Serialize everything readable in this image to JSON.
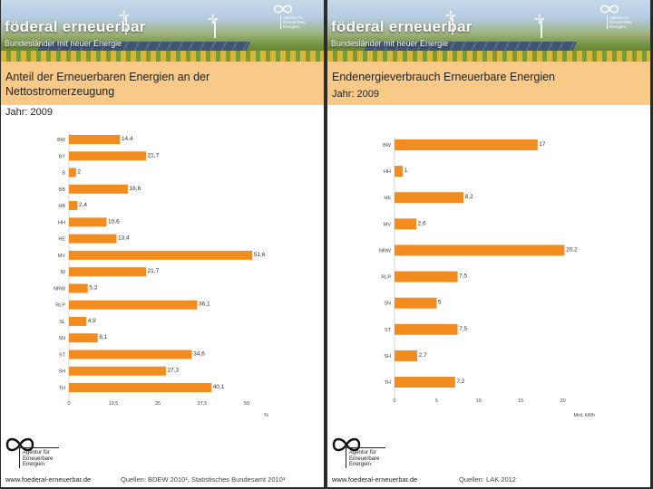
{
  "left": {
    "brand": "föderal erneuerbar",
    "tagline": "Bundesländer mit neuer Energie",
    "agency_text": [
      "Agentur für",
      "Erneuerbare",
      "Energien"
    ],
    "title_line1": "Anteil der Erneuerbaren Energien  an der",
    "title_line2": "Nettostromerzeugung",
    "year": "Jahr: 2009",
    "url": "www.foederal-erneuerbar.de",
    "source": "Quellen:  BDEW 2010¹, Statistisches Bundesamt 2010³"
  },
  "right": {
    "brand": "föderal erneuerbar",
    "tagline": "Bundesländer mit neuer Energie",
    "agency_text": [
      "Agentur für",
      "Erneuerbare",
      "Energien"
    ],
    "title": "Endenergieverbrauch Erneuerbare Energien",
    "year": "Jahr: 2009",
    "url": "www.foederal-erneuerbar.de",
    "source": "Quellen:  LAK 2012"
  },
  "chart_data": [
    {
      "type": "bar",
      "orientation": "horizontal",
      "title": "Anteil der Erneuerbaren Energien an der Nettostromerzeugung",
      "categories": [
        "BW",
        "BY",
        "B",
        "BB",
        "HB",
        "HH",
        "HE",
        "MV",
        "NI",
        "NRW",
        "RLP",
        "SL",
        "SN",
        "ST",
        "SH",
        "TH"
      ],
      "values": [
        14.4,
        21.7,
        2,
        16.6,
        2.4,
        10.6,
        13.4,
        51.6,
        21.7,
        5.3,
        36.1,
        4.9,
        8.1,
        34.6,
        27.3,
        40.1
      ],
      "value_labels": [
        "14,4",
        "21,7",
        "2",
        "16,6",
        "2,4",
        "10,6",
        "13,4",
        "51,6",
        "21,7",
        "5,3",
        "36,1",
        "4,9",
        "8,1",
        "34,6",
        "27,3",
        "40,1"
      ],
      "xticks": [
        0,
        12.5,
        25,
        37.5,
        50
      ],
      "xtick_labels": [
        "0",
        "12,5",
        "25",
        "37,5",
        "50"
      ],
      "xlim": [
        0,
        62.5
      ],
      "xlabel": "%",
      "color": "#f28c1e"
    },
    {
      "type": "bar",
      "orientation": "horizontal",
      "title": "Endenergieverbrauch Erneuerbare Energien",
      "categories": [
        "BW",
        "HH",
        "HE",
        "MV",
        "NRW",
        "RLP",
        "SN",
        "ST",
        "SH",
        "TH"
      ],
      "values": [
        17,
        1,
        8.2,
        2.6,
        20.2,
        7.5,
        5,
        7.5,
        2.7,
        7.2
      ],
      "value_labels": [
        "17",
        "1",
        "8,2",
        "2,6",
        "20,2",
        "7,5",
        "5",
        "7,5",
        "2,7",
        "7,2"
      ],
      "xticks": [
        0,
        5,
        10,
        15,
        20
      ],
      "xtick_labels": [
        "0",
        "5",
        "10",
        "15",
        "20"
      ],
      "xlim": [
        0,
        25
      ],
      "xlabel": "Mrd. kWh",
      "color": "#f28c1e"
    }
  ]
}
